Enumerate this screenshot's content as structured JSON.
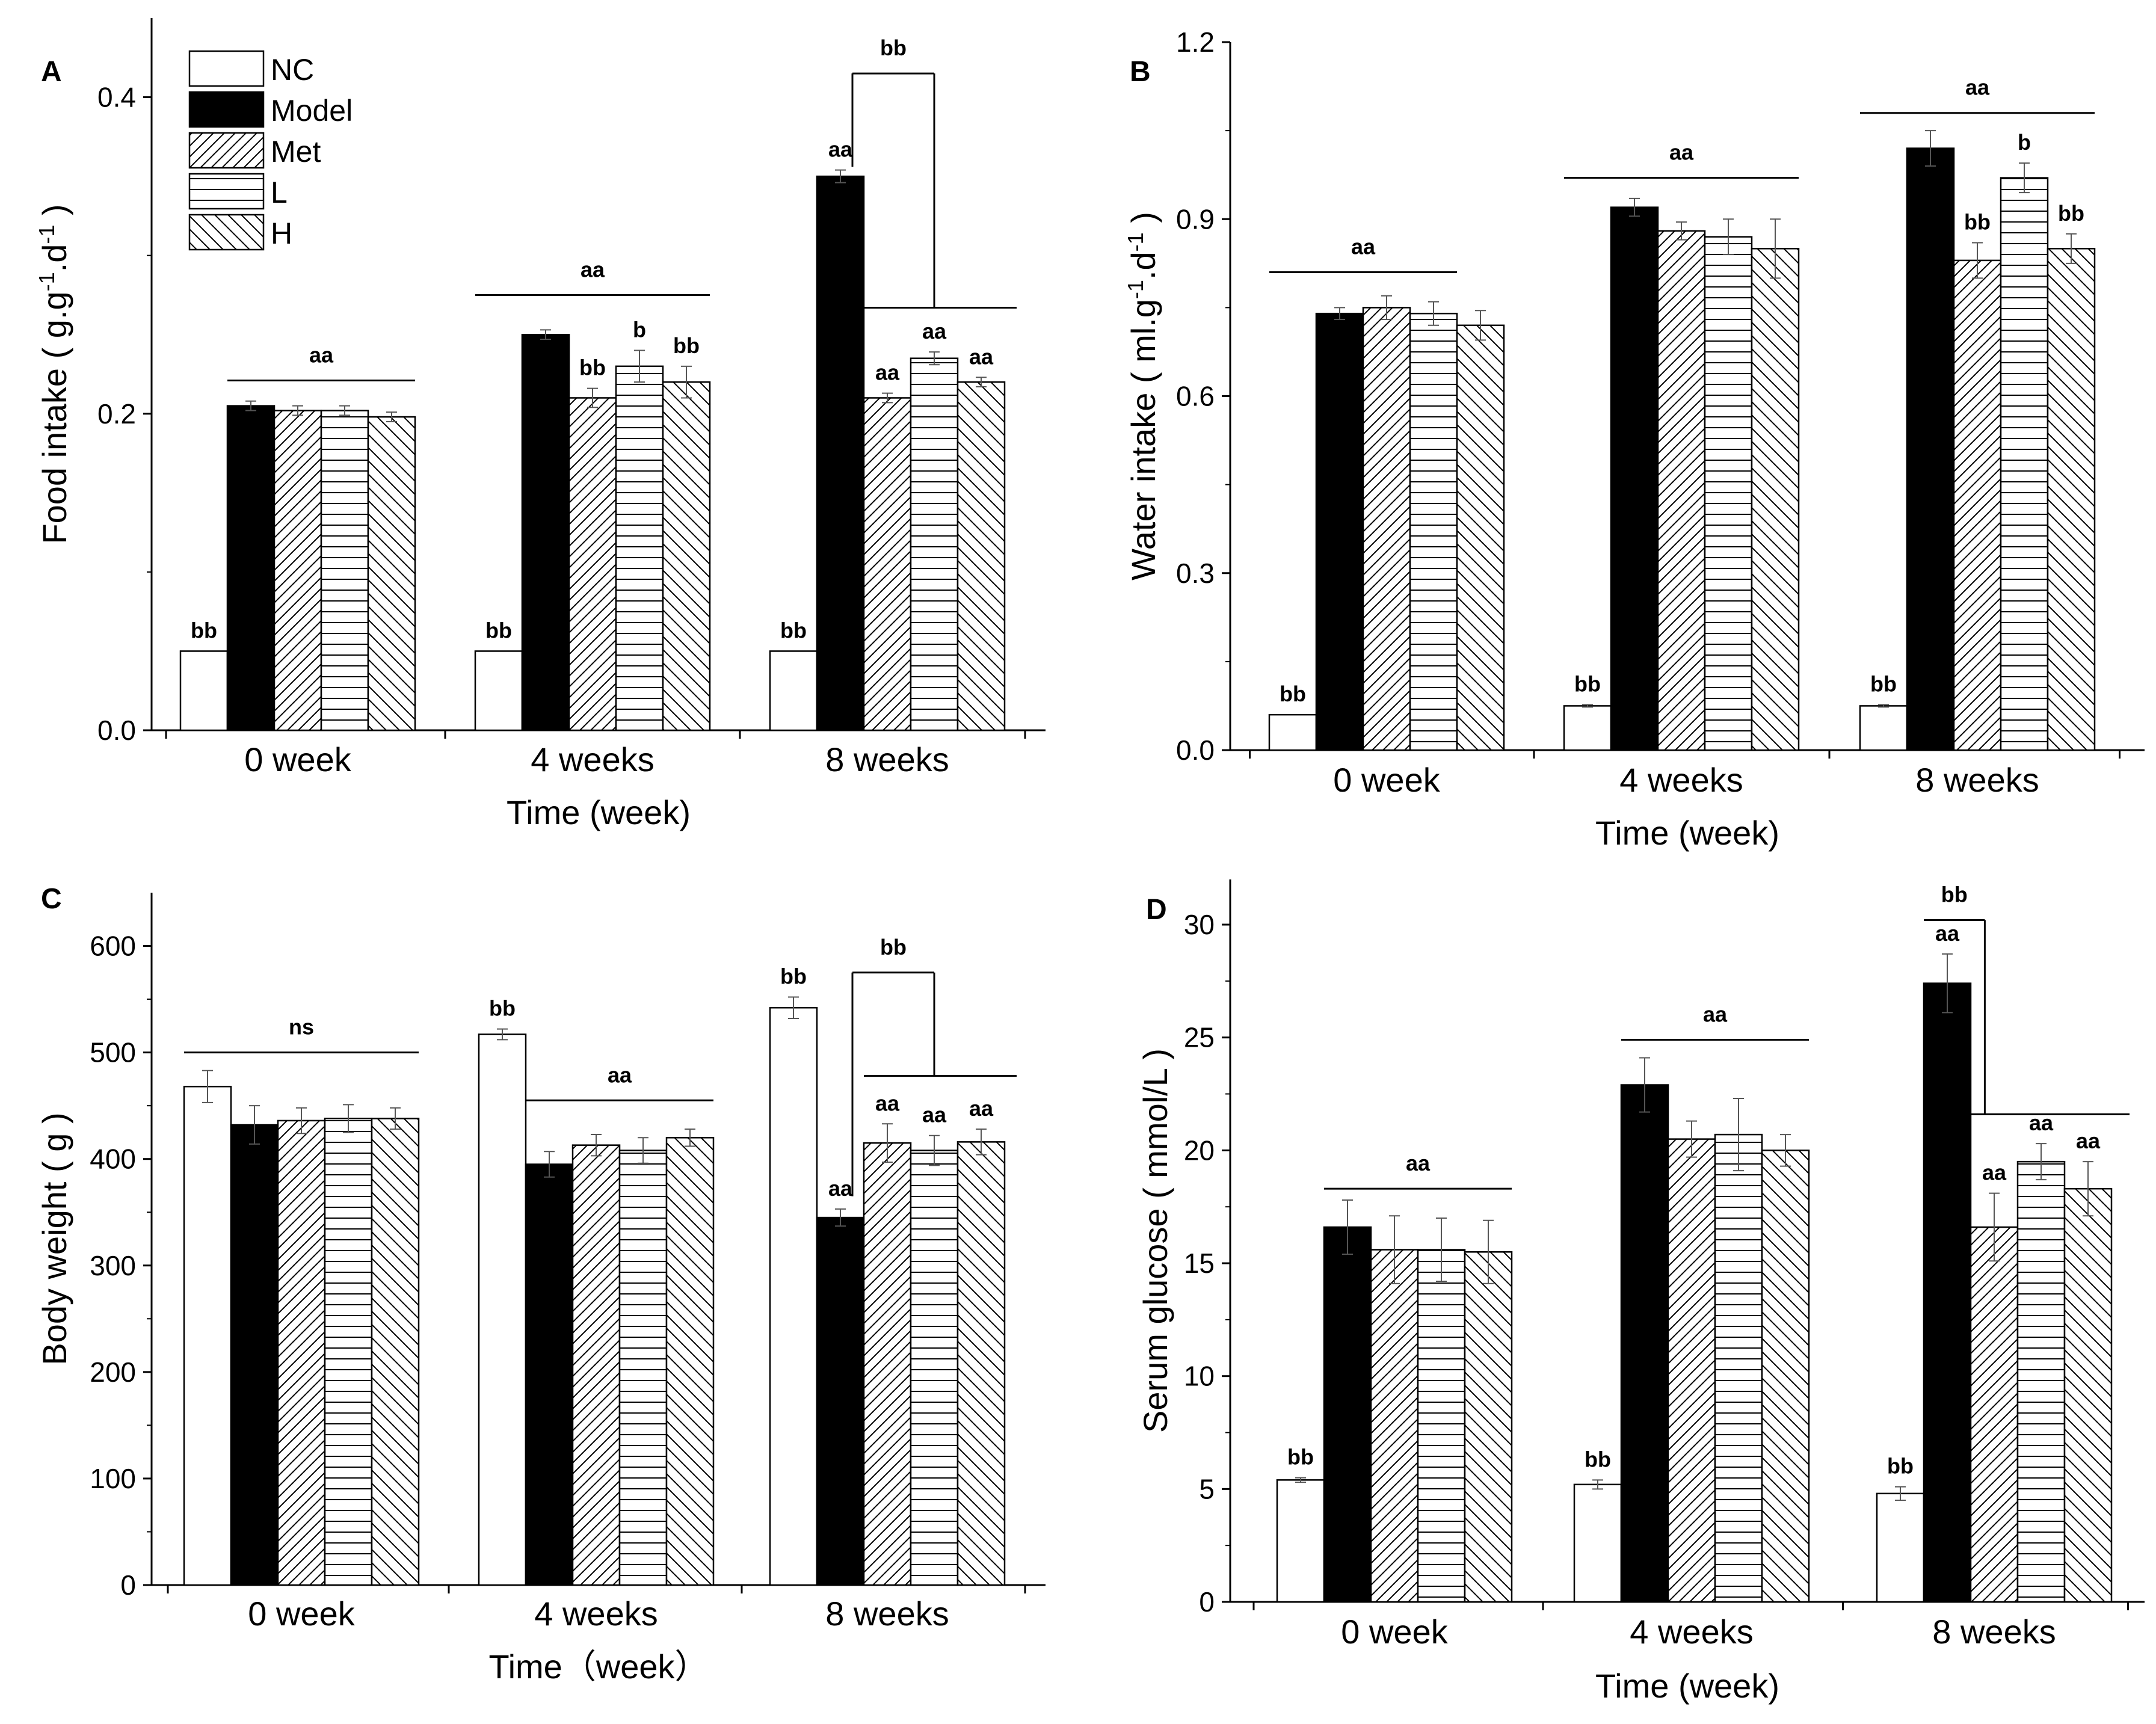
{
  "figure": {
    "legend": [
      "NC",
      "Model",
      "Met",
      "L",
      "H"
    ],
    "colors": {
      "fill_model": "#000000",
      "fill_other": "#ffffff",
      "stroke": "#000000"
    }
  },
  "chart_data": [
    {
      "panel": "A",
      "type": "bar",
      "title": "",
      "xlabel": "Time (week)",
      "ylabel_parts": [
        "Food intake ( g.g",
        "-1",
        ".d",
        "-1",
        " )"
      ],
      "ylim": [
        0,
        0.45
      ],
      "yticks": [
        "0.0",
        "0.2",
        "0.4"
      ],
      "ytick_values": [
        0,
        0.2,
        0.4
      ],
      "categories": [
        "0 week",
        "4 weeks",
        "8 weeks"
      ],
      "series": [
        {
          "name": "NC",
          "values": [
            0.05,
            0.05,
            0.05
          ],
          "errors": [
            0,
            0,
            0
          ]
        },
        {
          "name": "Model",
          "values": [
            0.205,
            0.25,
            0.35
          ],
          "errors": [
            0.003,
            0.003,
            0.004
          ]
        },
        {
          "name": "Met",
          "values": [
            0.202,
            0.21,
            0.21
          ],
          "errors": [
            0.003,
            0.006,
            0.003
          ]
        },
        {
          "name": "L",
          "values": [
            0.202,
            0.23,
            0.235
          ],
          "errors": [
            0.003,
            0.01,
            0.004
          ]
        },
        {
          "name": "H",
          "values": [
            0.198,
            0.22,
            0.22
          ],
          "errors": [
            0.003,
            0.01,
            0.003
          ]
        }
      ],
      "bar_labels": [
        [
          "bb",
          "",
          "",
          "",
          ""
        ],
        [
          "bb",
          "",
          "bb",
          "b",
          "bb"
        ],
        [
          "bb",
          "aa",
          "aa",
          "aa",
          "aa"
        ]
      ],
      "group_lines": [
        {
          "label": "aa",
          "group": 0,
          "from": 1,
          "to": 4,
          "y": 0.221
        },
        {
          "label": "aa",
          "group": 1,
          "from": 0,
          "to": 4,
          "y": 0.275
        }
      ],
      "brackets": [
        {
          "label": "bb",
          "group": 2,
          "left_y": 0.356,
          "top_y": 0.415,
          "right_y": 0.267
        }
      ]
    },
    {
      "panel": "B",
      "type": "bar",
      "title": "",
      "xlabel": "Time (week)",
      "ylabel_parts": [
        "Water intake ( ml.g",
        "-1",
        ".d",
        "-1",
        " )"
      ],
      "ylim": [
        0,
        1.2
      ],
      "yticks": [
        "0.0",
        "0.3",
        "0.6",
        "0.9",
        "1.2"
      ],
      "ytick_values": [
        0,
        0.3,
        0.6,
        0.9,
        1.2
      ],
      "categories": [
        "0 week",
        "4 weeks",
        "8 weeks"
      ],
      "series": [
        {
          "name": "NC",
          "values": [
            0.06,
            0.075,
            0.075
          ],
          "errors": [
            0,
            0.002,
            0.002
          ]
        },
        {
          "name": "Model",
          "values": [
            0.74,
            0.92,
            1.02
          ],
          "errors": [
            0.01,
            0.015,
            0.03
          ]
        },
        {
          "name": "Met",
          "values": [
            0.75,
            0.88,
            0.83
          ],
          "errors": [
            0.02,
            0.015,
            0.03
          ]
        },
        {
          "name": "L",
          "values": [
            0.74,
            0.87,
            0.97
          ],
          "errors": [
            0.02,
            0.03,
            0.025
          ]
        },
        {
          "name": "H",
          "values": [
            0.72,
            0.85,
            0.85
          ],
          "errors": [
            0.025,
            0.05,
            0.025
          ]
        }
      ],
      "bar_labels": [
        [
          "bb",
          "",
          "",
          "",
          ""
        ],
        [
          "bb",
          "",
          "",
          "",
          ""
        ],
        [
          "bb",
          "",
          "bb",
          "b",
          "bb"
        ]
      ],
      "group_lines": [
        {
          "label": "aa",
          "group": 0,
          "from": 0,
          "to": 3,
          "y": 0.81
        },
        {
          "label": "aa",
          "group": 1,
          "from": 0,
          "to": 4,
          "y": 0.97
        },
        {
          "label": "aa",
          "group": 2,
          "from": 0,
          "to": 4,
          "y": 1.08
        }
      ],
      "brackets": []
    },
    {
      "panel": "C",
      "type": "bar",
      "title": "",
      "xlabel": "Time（week）",
      "ylabel_parts": [
        "Body weight ( g )"
      ],
      "ylim": [
        0,
        650
      ],
      "yticks": [
        "0",
        "100",
        "200",
        "300",
        "400",
        "500",
        "600"
      ],
      "ytick_values": [
        0,
        100,
        200,
        300,
        400,
        500,
        600
      ],
      "categories": [
        "0 week",
        "4 weeks",
        "8 weeks"
      ],
      "series": [
        {
          "name": "NC",
          "values": [
            468,
            517,
            542
          ],
          "errors": [
            15,
            5,
            10
          ]
        },
        {
          "name": "Model",
          "values": [
            432,
            395,
            345
          ],
          "errors": [
            18,
            12,
            8
          ]
        },
        {
          "name": "Met",
          "values": [
            436,
            413,
            415
          ],
          "errors": [
            12,
            10,
            18
          ]
        },
        {
          "name": "L",
          "values": [
            438,
            408,
            408
          ],
          "errors": [
            13,
            12,
            14
          ]
        },
        {
          "name": "H",
          "values": [
            438,
            420,
            416
          ],
          "errors": [
            10,
            8,
            12
          ]
        }
      ],
      "bar_labels": [
        [
          "",
          "",
          "",
          "",
          ""
        ],
        [
          "bb",
          "",
          "",
          "",
          ""
        ],
        [
          "bb",
          "aa",
          "aa",
          "aa",
          "aa"
        ]
      ],
      "group_lines": [
        {
          "label": "ns",
          "group": 0,
          "from": 0,
          "to": 4,
          "y": 500
        },
        {
          "label": "aa",
          "group": 1,
          "from": 1,
          "to": 4,
          "y": 455
        }
      ],
      "brackets": [
        {
          "label": "bb",
          "group": 2,
          "left_y": 365,
          "top_y": 575,
          "right_y": 478
        }
      ]
    },
    {
      "panel": "D",
      "type": "bar",
      "title": "",
      "xlabel": "Time (week)",
      "ylabel_parts": [
        "Serum glucose ( mmol/L )"
      ],
      "ylim": [
        0,
        32
      ],
      "yticks": [
        "0",
        "5",
        "10",
        "15",
        "20",
        "25",
        "30"
      ],
      "ytick_values": [
        0,
        5,
        10,
        15,
        20,
        25,
        30
      ],
      "categories": [
        "0 week",
        "4 weeks",
        "8 weeks"
      ],
      "series": [
        {
          "name": "NC",
          "values": [
            5.4,
            5.2,
            4.8
          ],
          "errors": [
            0.1,
            0.2,
            0.3
          ]
        },
        {
          "name": "Model",
          "values": [
            16.6,
            22.9,
            27.4
          ],
          "errors": [
            1.2,
            1.2,
            1.3
          ]
        },
        {
          "name": "Met",
          "values": [
            15.6,
            20.5,
            16.6
          ],
          "errors": [
            1.5,
            0.8,
            1.5
          ]
        },
        {
          "name": "L",
          "values": [
            15.6,
            20.7,
            19.5
          ],
          "errors": [
            1.4,
            1.6,
            0.8
          ]
        },
        {
          "name": "H",
          "values": [
            15.5,
            20.0,
            18.3
          ],
          "errors": [
            1.4,
            0.7,
            1.2
          ]
        }
      ],
      "bar_labels": [
        [
          "bb",
          "",
          "",
          "",
          ""
        ],
        [
          "bb",
          "",
          "",
          "",
          ""
        ],
        [
          "bb",
          "aa",
          "aa",
          "aa",
          "aa"
        ]
      ],
      "group_lines": [
        {
          "label": "aa",
          "group": 0,
          "from": 1,
          "to": 4,
          "y": 18.3
        },
        {
          "label": "aa",
          "group": 1,
          "from": 1,
          "to": 4,
          "y": 24.9
        }
      ],
      "brackets": [
        {
          "label": "bb",
          "group": 2,
          "left_y": 30.2,
          "right_x_frac": 0.35,
          "bottom_from": 2,
          "bottom_y": 21.6
        }
      ]
    }
  ]
}
